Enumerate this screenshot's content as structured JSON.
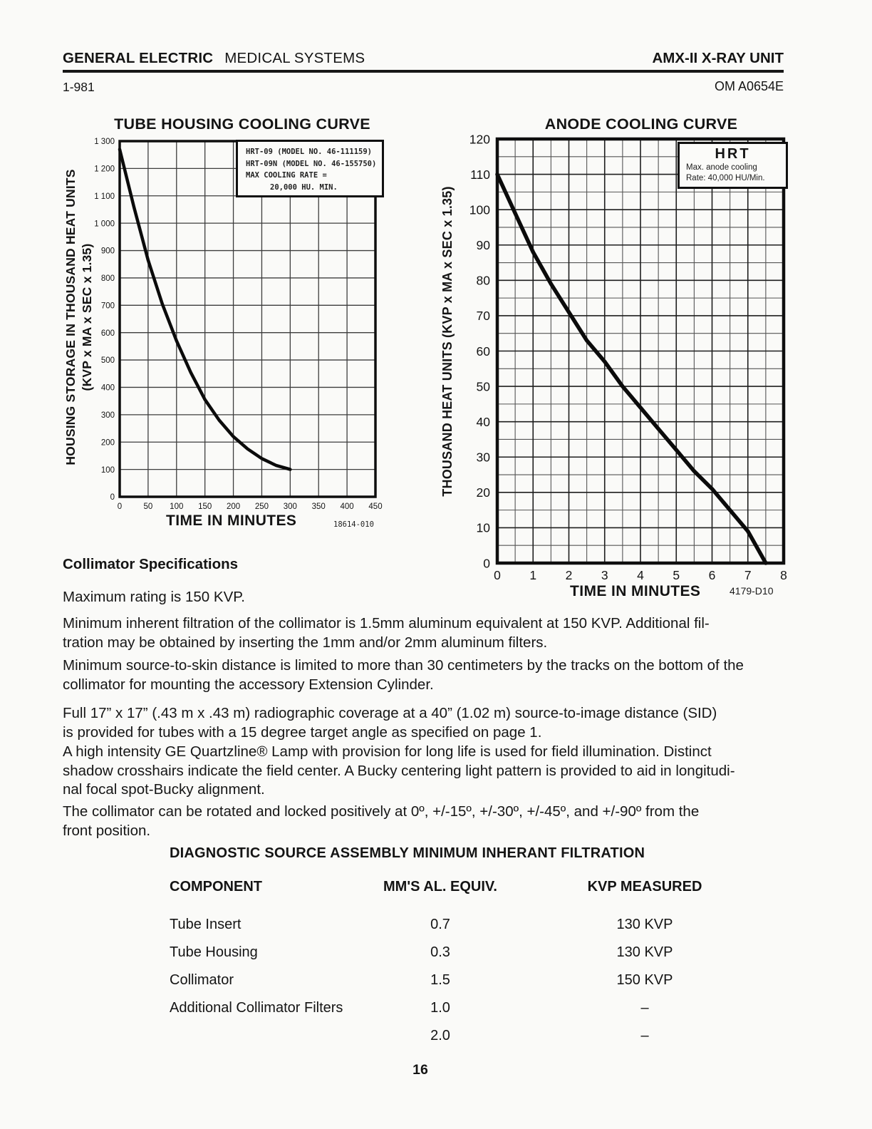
{
  "header": {
    "brand_bold": "GENERAL ELECTRIC",
    "brand_regular": "MEDICAL SYSTEMS",
    "product": "AMX-II X-RAY UNIT",
    "date_code": "1-981",
    "doc_number": "OM A0654E"
  },
  "content": {
    "heading": "Collimator Specifications",
    "paragraphs": [
      {
        "lines": [
          "Maximum rating is 150 KVP."
        ]
      },
      {
        "lines": [
          "Minimum inherent filtration of the collimator is 1.5mm aluminum equivalent at 150 KVP. Additional fil-",
          "tration may be obtained by inserting the 1mm and/or 2mm aluminum filters."
        ]
      },
      {
        "lines": [
          "Minimum source-to-skin distance is limited to more than 30 centimeters by the tracks on the bottom of the",
          "collimator for mounting the accessory Extension Cylinder."
        ]
      },
      {
        "lines": [
          "Full 17” x 17” (.43 m x .43 m) radiographic coverage at a 40” (1.02 m) source-to-image distance (SID)",
          "is provided for tubes with a 15 degree target angle as specified on page 1."
        ]
      },
      {
        "lines": [
          "A high intensity GE Quartzline® Lamp with provision for long life is used for field illumination. Distinct",
          "shadow crosshairs indicate the field center. A Bucky centering light pattern is provided to aid in longitudi-",
          "nal focal spot-Bucky alignment."
        ]
      },
      {
        "lines": [
          "The collimator can be rotated and locked positively at 0º, +/-15º, +/-30º, +/-45º, and +/-90º from the",
          "front position."
        ]
      }
    ]
  },
  "table": {
    "title": "DIAGNOSTIC SOURCE ASSEMBLY MINIMUM INHERANT FILTRATION",
    "columns": [
      "COMPONENT",
      "MM'S AL. EQUIV.",
      "KVP MEASURED"
    ],
    "rows": [
      [
        "Tube Insert",
        "0.7",
        "130 KVP"
      ],
      [
        "Tube Housing",
        "0.3",
        "130 KVP"
      ],
      [
        "Collimator",
        "1.5",
        "150 KVP"
      ],
      [
        "Additional Collimator Filters",
        "1.0",
        "–"
      ],
      [
        "",
        "2.0",
        "–"
      ]
    ]
  },
  "page": {
    "number": "16"
  },
  "chart_data": [
    {
      "type": "line",
      "title": "TUBE HOUSING COOLING CURVE",
      "xlabel": "TIME IN MINUTES",
      "ylabel_line1": "HOUSING STORAGE IN THOUSAND HEAT UNITS",
      "ylabel_line2": "(KVP x MA x SEC x 1.35)",
      "figure_id": "18614-010",
      "legend_lines": [
        "HRT-09 (MODEL NO. 46-111159)",
        "HRT-09N (MODEL NO. 46-155750)",
        "MAX  COOLING RATE =",
        "20,000 HU. MIN."
      ],
      "xlim": [
        0,
        450
      ],
      "ylim": [
        0,
        1300
      ],
      "x_major": 50,
      "y_major": 100,
      "x_ticks": [
        "0",
        "50",
        "100",
        "150",
        "200",
        "250",
        "300",
        "350",
        "400",
        "450"
      ],
      "y_ticks": [
        "0",
        "100",
        "200",
        "300",
        "400",
        "500",
        "600",
        "700",
        "800",
        "900",
        "1 000",
        "1 100",
        "1 200",
        "1 300"
      ],
      "grid": "major-only",
      "legend_position": "top-right",
      "series": [
        {
          "name": "tube-housing-cooling",
          "points": [
            [
              0,
              1270
            ],
            [
              25,
              1060
            ],
            [
              50,
              865
            ],
            [
              75,
              705
            ],
            [
              100,
              570
            ],
            [
              125,
              455
            ],
            [
              150,
              355
            ],
            [
              175,
              280
            ],
            [
              200,
              220
            ],
            [
              225,
              175
            ],
            [
              250,
              140
            ],
            [
              275,
              115
            ],
            [
              300,
              100
            ]
          ]
        }
      ]
    },
    {
      "type": "line",
      "title": "ANODE COOLING CURVE",
      "xlabel": "TIME IN MINUTES",
      "ylabel": "THOUSAND HEAT UNITS  (KVP x MA x SEC x 1.35)",
      "figure_id": "4179-D10",
      "legend_title": "HRT",
      "legend_lines": [
        "Max. anode cooling",
        "Rate:    40,000 HU/Min."
      ],
      "xlim": [
        0,
        8
      ],
      "ylim": [
        0,
        120
      ],
      "x_major": 1,
      "x_minor": 0.5,
      "y_major": 10,
      "y_minor": 5,
      "x_ticks": [
        "0",
        "1",
        "2",
        "3",
        "4",
        "5",
        "6",
        "7",
        "8"
      ],
      "y_ticks": [
        "0",
        "10",
        "20",
        "30",
        "40",
        "50",
        "60",
        "70",
        "80",
        "90",
        "100",
        "110",
        "120"
      ],
      "grid": "major-and-minor",
      "legend_position": "top-right",
      "series": [
        {
          "name": "anode-cooling",
          "points": [
            [
              0,
              110
            ],
            [
              0.5,
              99
            ],
            [
              1,
              88
            ],
            [
              1.5,
              79
            ],
            [
              2,
              71
            ],
            [
              2.5,
              63
            ],
            [
              3,
              57
            ],
            [
              3.5,
              50
            ],
            [
              4,
              44
            ],
            [
              4.5,
              38
            ],
            [
              5,
              32
            ],
            [
              5.5,
              26
            ],
            [
              6,
              21
            ],
            [
              6.5,
              15
            ],
            [
              7,
              9
            ],
            [
              7.5,
              0
            ]
          ]
        }
      ]
    }
  ]
}
